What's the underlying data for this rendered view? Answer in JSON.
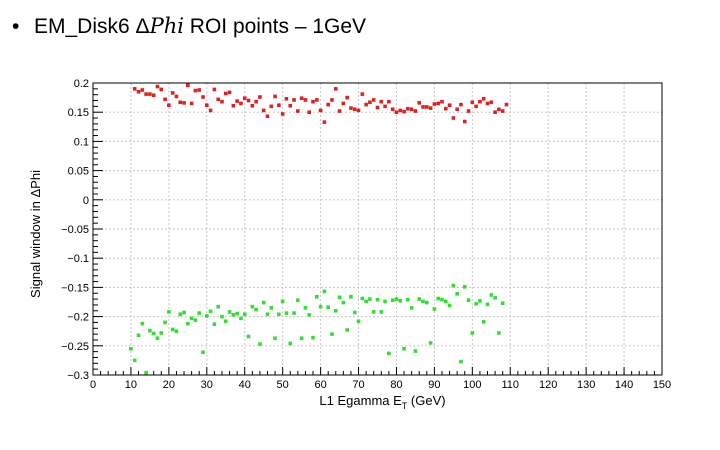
{
  "slide": {
    "bullet": "•",
    "title_prefix": "EM_Disk6 Δ",
    "title_math": "Phi",
    "title_suffix": " ROI points – 1GeV"
  },
  "chart_data": {
    "type": "scatter",
    "title": "",
    "xlabel": "L1 Egamma E",
    "xlabel_subscript": "T",
    "xlabel_suffix": " (GeV)",
    "ylabel": "Signal window in ΔPhi",
    "xlim": [
      0,
      150
    ],
    "ylim": [
      -0.3,
      0.2
    ],
    "xticks": [
      0,
      10,
      20,
      30,
      40,
      50,
      60,
      70,
      80,
      90,
      100,
      110,
      120,
      130,
      140,
      150
    ],
    "yticks": [
      0.2,
      0.15,
      0.1,
      0.05,
      0,
      -0.05,
      -0.1,
      -0.15,
      -0.2,
      -0.25,
      -0.3
    ],
    "ytick_labels": [
      "0.2",
      "0.15",
      "0.1",
      "0.05",
      "0",
      "−0.05",
      "−0.1",
      "−0.15",
      "−0.2",
      "−0.25",
      "−0.3"
    ],
    "grid": true,
    "legend": "none",
    "colors": {
      "upper": "#dd2222",
      "lower": "#33dd33",
      "grid": "#c8c8c8"
    },
    "series": [
      {
        "values": [
          [
            11,
            0.19
          ],
          [
            12,
            0.185
          ],
          [
            13,
            0.188
          ],
          [
            14,
            0.181
          ],
          [
            15,
            0.181
          ],
          [
            16,
            0.179
          ],
          [
            17,
            0.194
          ],
          [
            18,
            0.189
          ],
          [
            19,
            0.172
          ],
          [
            20,
            0.162
          ],
          [
            21,
            0.183
          ],
          [
            22,
            0.177
          ],
          [
            23,
            0.167
          ],
          [
            24,
            0.166
          ],
          [
            25,
            0.196
          ],
          [
            26,
            0.165
          ],
          [
            27,
            0.187
          ],
          [
            28,
            0.188
          ],
          [
            29,
            0.176
          ],
          [
            30,
            0.162
          ],
          [
            31,
            0.153
          ],
          [
            32,
            0.189
          ],
          [
            33,
            0.172
          ],
          [
            34,
            0.168
          ],
          [
            35,
            0.182
          ],
          [
            36,
            0.184
          ],
          [
            37,
            0.161
          ],
          [
            38,
            0.169
          ],
          [
            39,
            0.165
          ],
          [
            40,
            0.174
          ],
          [
            41,
            0.17
          ],
          [
            42,
            0.161
          ],
          [
            43,
            0.168
          ],
          [
            44,
            0.176
          ],
          [
            45,
            0.153
          ],
          [
            46,
            0.143
          ],
          [
            47,
            0.16
          ],
          [
            48,
            0.177
          ],
          [
            49,
            0.162
          ],
          [
            50,
            0.147
          ],
          [
            51,
            0.173
          ],
          [
            52,
            0.161
          ],
          [
            53,
            0.171
          ],
          [
            54,
            0.152
          ],
          [
            55,
            0.174
          ],
          [
            56,
            0.171
          ],
          [
            57,
            0.15
          ],
          [
            58,
            0.168
          ],
          [
            59,
            0.171
          ],
          [
            60,
            0.153
          ],
          [
            61,
            0.133
          ],
          [
            62,
            0.163
          ],
          [
            63,
            0.171
          ],
          [
            64,
            0.19
          ],
          [
            65,
            0.152
          ],
          [
            66,
            0.165
          ],
          [
            67,
            0.175
          ],
          [
            68,
            0.157
          ],
          [
            69,
            0.155
          ],
          [
            70,
            0.153
          ],
          [
            71,
            0.181
          ],
          [
            72,
            0.163
          ],
          [
            73,
            0.167
          ],
          [
            74,
            0.171
          ],
          [
            75,
            0.158
          ],
          [
            76,
            0.168
          ],
          [
            77,
            0.16
          ],
          [
            78,
            0.168
          ],
          [
            79,
            0.155
          ],
          [
            80,
            0.15
          ],
          [
            81,
            0.153
          ],
          [
            82,
            0.151
          ],
          [
            83,
            0.156
          ],
          [
            84,
            0.155
          ],
          [
            85,
            0.152
          ],
          [
            86,
            0.166
          ],
          [
            87,
            0.159
          ],
          [
            88,
            0.159
          ],
          [
            89,
            0.157
          ],
          [
            90,
            0.164
          ],
          [
            91,
            0.165
          ],
          [
            92,
            0.168
          ],
          [
            93,
            0.156
          ],
          [
            94,
            0.162
          ],
          [
            95,
            0.14
          ],
          [
            96,
            0.155
          ],
          [
            97,
            0.163
          ],
          [
            98,
            0.134
          ],
          [
            99,
            0.152
          ],
          [
            100,
            0.167
          ],
          [
            101,
            0.16
          ],
          [
            102,
            0.168
          ],
          [
            103,
            0.173
          ],
          [
            104,
            0.165
          ],
          [
            105,
            0.167
          ],
          [
            106,
            0.15
          ],
          [
            107,
            0.155
          ],
          [
            108,
            0.152
          ],
          [
            109,
            0.163
          ]
        ]
      },
      {
        "values": [
          [
            10,
            -0.255
          ],
          [
            11,
            -0.275
          ],
          [
            12,
            -0.232
          ],
          [
            13,
            -0.212
          ],
          [
            14,
            -0.296
          ],
          [
            15,
            -0.224
          ],
          [
            16,
            -0.229
          ],
          [
            17,
            -0.237
          ],
          [
            18,
            -0.228
          ],
          [
            19,
            -0.21
          ],
          [
            20,
            -0.192
          ],
          [
            21,
            -0.222
          ],
          [
            22,
            -0.225
          ],
          [
            23,
            -0.196
          ],
          [
            24,
            -0.193
          ],
          [
            25,
            -0.212
          ],
          [
            26,
            -0.203
          ],
          [
            27,
            -0.206
          ],
          [
            28,
            -0.194
          ],
          [
            29,
            -0.261
          ],
          [
            30,
            -0.199
          ],
          [
            31,
            -0.191
          ],
          [
            32,
            -0.213
          ],
          [
            33,
            -0.183
          ],
          [
            34,
            -0.2
          ],
          [
            35,
            -0.208
          ],
          [
            36,
            -0.192
          ],
          [
            37,
            -0.197
          ],
          [
            38,
            -0.195
          ],
          [
            39,
            -0.203
          ],
          [
            40,
            -0.196
          ],
          [
            41,
            -0.234
          ],
          [
            42,
            -0.183
          ],
          [
            43,
            -0.188
          ],
          [
            44,
            -0.247
          ],
          [
            45,
            -0.176
          ],
          [
            46,
            -0.196
          ],
          [
            47,
            -0.185
          ],
          [
            48,
            -0.237
          ],
          [
            49,
            -0.196
          ],
          [
            50,
            -0.174
          ],
          [
            51,
            -0.194
          ],
          [
            52,
            -0.246
          ],
          [
            53,
            -0.194
          ],
          [
            54,
            -0.172
          ],
          [
            55,
            -0.237
          ],
          [
            56,
            -0.185
          ],
          [
            57,
            -0.197
          ],
          [
            58,
            -0.236
          ],
          [
            59,
            -0.166
          ],
          [
            60,
            -0.183
          ],
          [
            61,
            -0.157
          ],
          [
            62,
            -0.184
          ],
          [
            63,
            -0.23
          ],
          [
            64,
            -0.19
          ],
          [
            65,
            -0.167
          ],
          [
            66,
            -0.176
          ],
          [
            67,
            -0.223
          ],
          [
            68,
            -0.166
          ],
          [
            69,
            -0.193
          ],
          [
            70,
            -0.208
          ],
          [
            71,
            -0.169
          ],
          [
            72,
            -0.174
          ],
          [
            73,
            -0.17
          ],
          [
            74,
            -0.192
          ],
          [
            75,
            -0.171
          ],
          [
            76,
            -0.192
          ],
          [
            77,
            -0.174
          ],
          [
            78,
            -0.263
          ],
          [
            79,
            -0.172
          ],
          [
            80,
            -0.17
          ],
          [
            81,
            -0.173
          ],
          [
            82,
            -0.255
          ],
          [
            83,
            -0.171
          ],
          [
            84,
            -0.185
          ],
          [
            85,
            -0.259
          ],
          [
            86,
            -0.17
          ],
          [
            87,
            -0.174
          ],
          [
            88,
            -0.176
          ],
          [
            89,
            -0.245
          ],
          [
            90,
            -0.187
          ],
          [
            91,
            -0.169
          ],
          [
            92,
            -0.171
          ],
          [
            93,
            -0.174
          ],
          [
            94,
            -0.181
          ],
          [
            95,
            -0.147
          ],
          [
            96,
            -0.161
          ],
          [
            97,
            -0.277
          ],
          [
            98,
            -0.149
          ],
          [
            99,
            -0.172
          ],
          [
            100,
            -0.228
          ],
          [
            101,
            -0.178
          ],
          [
            102,
            -0.173
          ],
          [
            103,
            -0.209
          ],
          [
            104,
            -0.179
          ],
          [
            105,
            -0.163
          ],
          [
            106,
            -0.168
          ],
          [
            107,
            -0.228
          ],
          [
            108,
            -0.177
          ]
        ]
      }
    ]
  }
}
